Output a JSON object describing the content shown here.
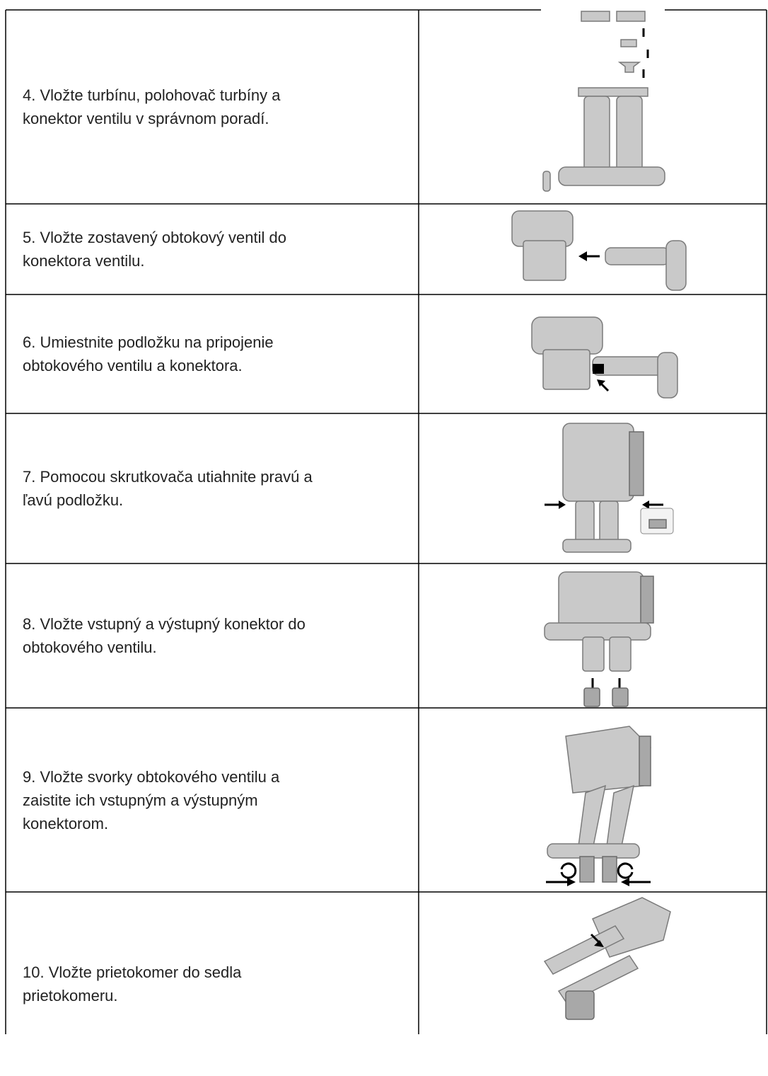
{
  "table": {
    "rows": [
      {
        "lines": [
          "4. Vložte turbínu, polohovač turbíny a",
          "konektor ventilu v správnom poradí."
        ]
      },
      {
        "lines": [
          "5. Vložte zostavený obtokový ventil do",
          "konektora ventilu."
        ]
      },
      {
        "lines": [
          "6. Umiestnite podložku na pripojenie",
          "obtokového ventilu a konektora."
        ]
      },
      {
        "lines": [
          "7. Pomocou skrutkovača utiahnite pravú a",
          "ľavú podložku."
        ]
      },
      {
        "lines": [
          "8. Vložte vstupný a výstupný konektor do",
          "obtokového ventilu."
        ]
      },
      {
        "lines": [
          "9. Vložte svorky obtokového ventilu a",
          "zaistite ich vstupným a výstupným",
          "konektorom."
        ]
      },
      {
        "lines": [
          "10. Vložte prietokomer do sedla",
          "prietokomeru."
        ]
      }
    ]
  }
}
